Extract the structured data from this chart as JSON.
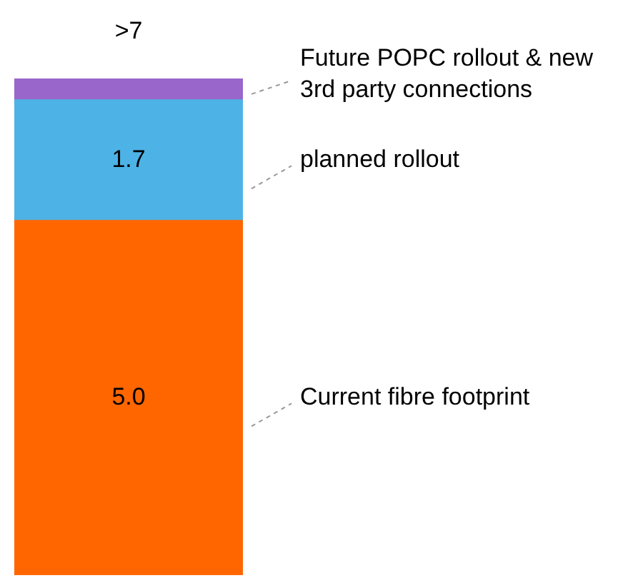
{
  "chart_data": {
    "type": "bar",
    "stacked": true,
    "categories": [
      null
    ],
    "legend": false,
    "series": [
      {
        "name": "Current fibre footprint",
        "color": "#ff6600",
        "values": [
          5.0
        ],
        "value_labels": [
          "5.0"
        ]
      },
      {
        "name": "planned rollout",
        "color": "#4db3e6",
        "values": [
          1.7
        ],
        "value_labels": [
          "1.7"
        ]
      },
      {
        "name": "Future POPC rollout & new 3rd party connections",
        "color": "#9966cc",
        "values": [
          0.3
        ],
        "value_labels": [
          null
        ]
      }
    ],
    "totals": [
      ">7"
    ]
  }
}
